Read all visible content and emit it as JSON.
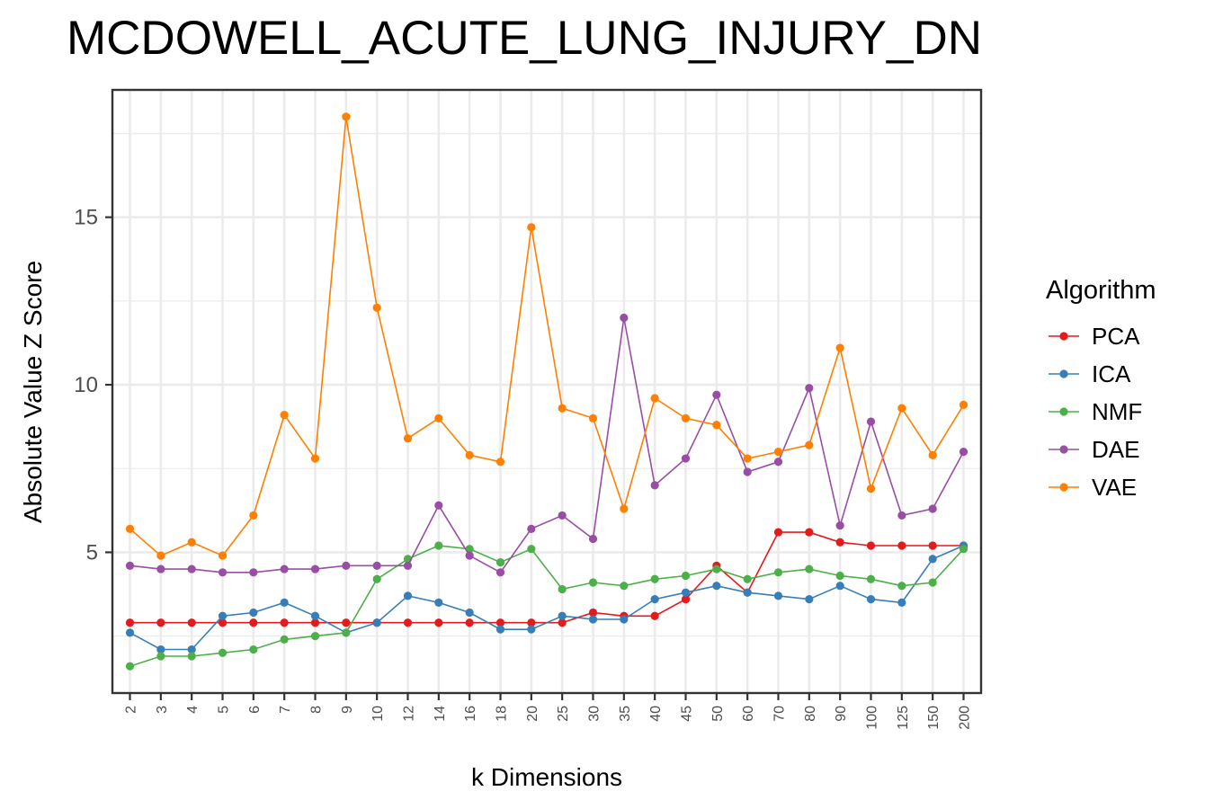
{
  "chart_data": {
    "type": "line",
    "title": "MCDOWELL_ACUTE_LUNG_INJURY_DN",
    "xlabel": "k Dimensions",
    "ylabel": "Absolute Value Z Score",
    "categories": [
      "2",
      "3",
      "4",
      "5",
      "6",
      "7",
      "8",
      "9",
      "10",
      "12",
      "14",
      "16",
      "18",
      "20",
      "25",
      "30",
      "35",
      "40",
      "45",
      "50",
      "60",
      "70",
      "80",
      "90",
      "100",
      "125",
      "150",
      "200"
    ],
    "ylim": [
      0.8,
      18.8
    ],
    "yticks": [
      5,
      10,
      15
    ],
    "grid": true,
    "legend_title": "Algorithm",
    "legend_position": "right",
    "series": [
      {
        "name": "PCA",
        "color": "#E41A1C",
        "values": [
          2.9,
          2.9,
          2.9,
          2.9,
          2.9,
          2.9,
          2.9,
          2.9,
          2.9,
          2.9,
          2.9,
          2.9,
          2.9,
          2.9,
          2.9,
          3.2,
          3.1,
          3.1,
          3.6,
          4.6,
          3.8,
          5.6,
          5.6,
          5.3,
          5.2,
          5.2,
          5.2,
          5.2
        ]
      },
      {
        "name": "ICA",
        "color": "#377EB8",
        "values": [
          2.6,
          2.1,
          2.1,
          3.1,
          3.2,
          3.5,
          3.1,
          2.6,
          2.9,
          3.7,
          3.5,
          3.2,
          2.7,
          2.7,
          3.1,
          3.0,
          3.0,
          3.6,
          3.8,
          4.0,
          3.8,
          3.7,
          3.6,
          4.0,
          3.6,
          3.5,
          4.8,
          5.2
        ]
      },
      {
        "name": "NMF",
        "color": "#4DAF4A",
        "values": [
          1.6,
          1.9,
          1.9,
          2.0,
          2.1,
          2.4,
          2.5,
          2.6,
          4.2,
          4.8,
          5.2,
          5.1,
          4.7,
          5.1,
          3.9,
          4.1,
          4.0,
          4.2,
          4.3,
          4.5,
          4.2,
          4.4,
          4.5,
          4.3,
          4.2,
          4.0,
          4.1,
          5.1
        ]
      },
      {
        "name": "DAE",
        "color": "#984EA3",
        "values": [
          4.6,
          4.5,
          4.5,
          4.4,
          4.4,
          4.5,
          4.5,
          4.6,
          4.6,
          4.6,
          6.4,
          4.9,
          4.4,
          5.7,
          6.1,
          5.4,
          12.0,
          7.0,
          7.8,
          9.7,
          7.4,
          7.7,
          9.9,
          5.8,
          8.9,
          6.1,
          6.3,
          8.0
        ]
      },
      {
        "name": "VAE",
        "color": "#FF7F00",
        "values": [
          5.7,
          4.9,
          5.3,
          4.9,
          6.1,
          9.1,
          7.8,
          18.0,
          12.3,
          8.4,
          9.0,
          7.9,
          7.7,
          14.7,
          9.3,
          9.0,
          6.3,
          9.6,
          9.0,
          8.8,
          7.8,
          8.0,
          8.2,
          11.1,
          6.9,
          9.3,
          7.9,
          9.4
        ]
      }
    ]
  }
}
